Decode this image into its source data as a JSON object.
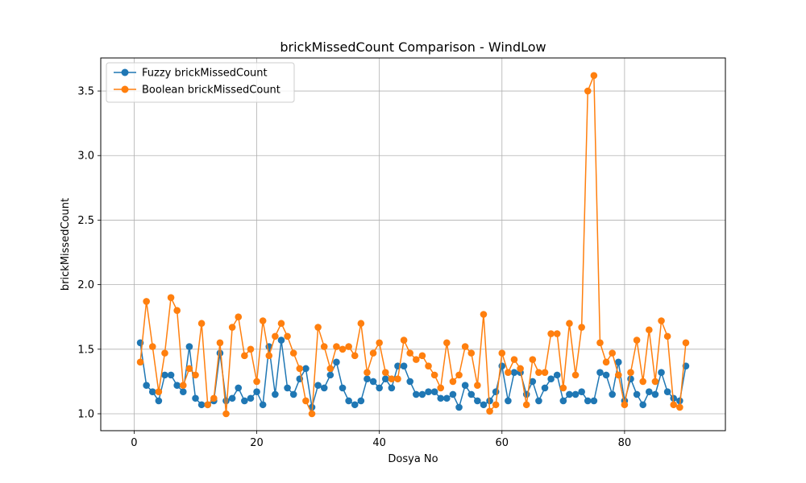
{
  "chart_data": {
    "type": "line",
    "title": "brickMissedCount Comparison - WindLow",
    "xlabel": "Dosya No",
    "ylabel": "brickMissedCount",
    "xlim": [
      -5.45,
      96.45
    ],
    "ylim": [
      0.869,
      3.756
    ],
    "xticks": [
      0,
      20,
      40,
      60,
      80
    ],
    "yticks": [
      1.0,
      1.5,
      2.0,
      2.5,
      3.0,
      3.5
    ],
    "xtick_labels": [
      "0",
      "20",
      "40",
      "60",
      "80"
    ],
    "ytick_labels": [
      "1.0",
      "1.5",
      "2.0",
      "2.5",
      "3.0",
      "3.5"
    ],
    "grid": true,
    "legend_position": "top-left",
    "x": [
      1,
      2,
      3,
      4,
      5,
      6,
      7,
      8,
      9,
      10,
      11,
      12,
      13,
      14,
      15,
      16,
      17,
      18,
      19,
      20,
      21,
      22,
      23,
      24,
      25,
      26,
      27,
      28,
      29,
      30,
      31,
      32,
      33,
      34,
      35,
      36,
      37,
      38,
      39,
      40,
      41,
      42,
      43,
      44,
      45,
      46,
      47,
      48,
      49,
      50,
      51,
      52,
      53,
      54,
      55,
      56,
      57,
      58,
      59,
      60,
      61,
      62,
      63,
      64,
      65,
      66,
      67,
      68,
      69,
      70,
      71,
      72,
      73,
      74,
      75,
      76,
      77,
      78,
      79,
      80,
      81,
      82,
      83,
      84,
      85,
      86,
      87,
      88,
      89,
      90
    ],
    "series": [
      {
        "name": "Fuzzy brickMissedCount",
        "color": "#1f77b4",
        "values": [
          1.55,
          1.22,
          1.17,
          1.1,
          1.3,
          1.3,
          1.22,
          1.17,
          1.52,
          1.12,
          1.07,
          1.07,
          1.1,
          1.47,
          1.1,
          1.12,
          1.2,
          1.1,
          1.12,
          1.17,
          1.07,
          1.52,
          1.15,
          1.57,
          1.2,
          1.15,
          1.27,
          1.35,
          1.05,
          1.22,
          1.2,
          1.3,
          1.4,
          1.2,
          1.1,
          1.07,
          1.1,
          1.27,
          1.25,
          1.2,
          1.27,
          1.2,
          1.37,
          1.37,
          1.25,
          1.15,
          1.15,
          1.17,
          1.17,
          1.12,
          1.12,
          1.15,
          1.05,
          1.22,
          1.15,
          1.1,
          1.07,
          1.1,
          1.17,
          1.37,
          1.1,
          1.32,
          1.32,
          1.15,
          1.25,
          1.1,
          1.2,
          1.27,
          1.3,
          1.1,
          1.15,
          1.15,
          1.17,
          1.1,
          1.1,
          1.32,
          1.3,
          1.15,
          1.4,
          1.1,
          1.27,
          1.15,
          1.07,
          1.17,
          1.15,
          1.32,
          1.17,
          1.12,
          1.1,
          1.37
        ]
      },
      {
        "name": "Boolean brickMissedCount",
        "color": "#ff7f0e",
        "values": [
          1.4,
          1.87,
          1.52,
          1.17,
          1.47,
          1.9,
          1.8,
          1.22,
          1.35,
          1.3,
          1.7,
          1.07,
          1.12,
          1.55,
          1.0,
          1.67,
          1.75,
          1.45,
          1.5,
          1.25,
          1.72,
          1.45,
          1.6,
          1.7,
          1.6,
          1.47,
          1.35,
          1.1,
          1.0,
          1.67,
          1.52,
          1.35,
          1.52,
          1.5,
          1.52,
          1.45,
          1.7,
          1.32,
          1.47,
          1.55,
          1.32,
          1.27,
          1.27,
          1.57,
          1.47,
          1.42,
          1.45,
          1.37,
          1.3,
          1.2,
          1.55,
          1.25,
          1.3,
          1.52,
          1.47,
          1.22,
          1.77,
          1.02,
          1.07,
          1.47,
          1.32,
          1.42,
          1.35,
          1.07,
          1.42,
          1.32,
          1.32,
          1.62,
          1.62,
          1.2,
          1.7,
          1.3,
          1.67,
          3.5,
          3.62,
          1.55,
          1.4,
          1.47,
          1.3,
          1.07,
          1.32,
          1.57,
          1.25,
          1.65,
          1.25,
          1.72,
          1.6,
          1.07,
          1.05,
          1.55
        ]
      }
    ]
  }
}
